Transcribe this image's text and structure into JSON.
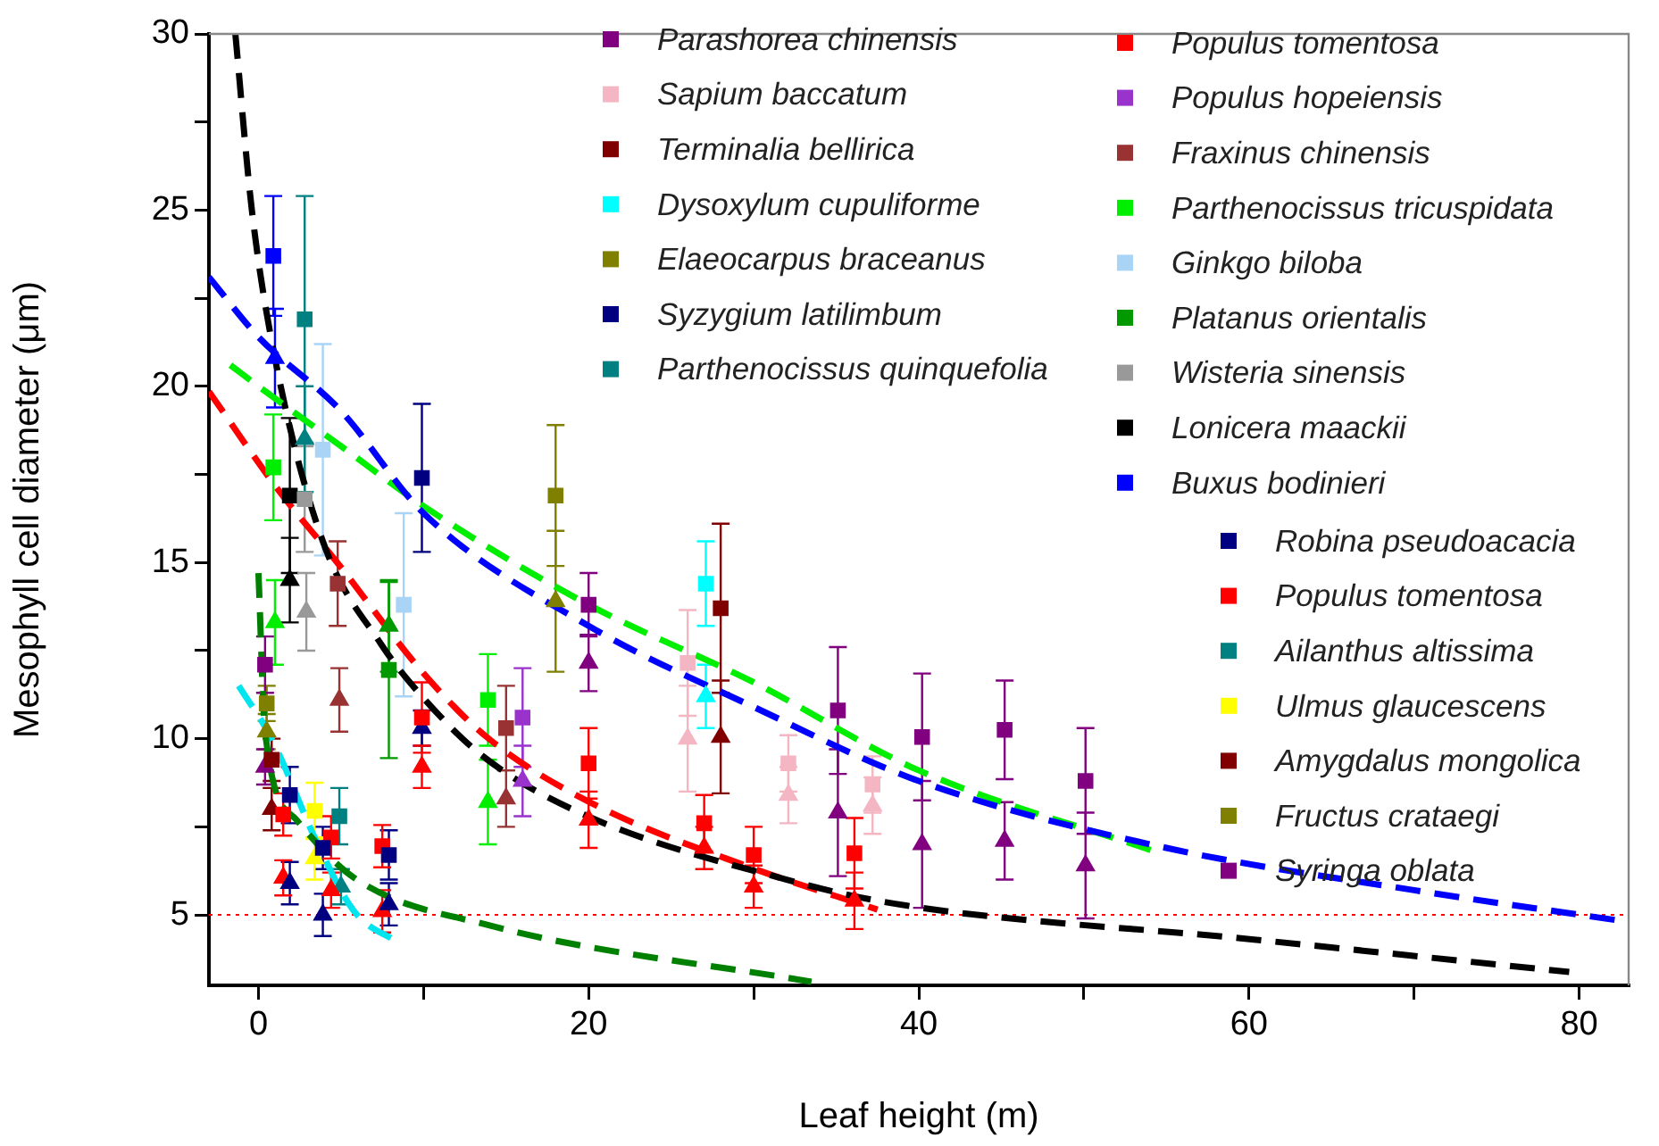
{
  "chart_data": {
    "type": "scatter",
    "xlabel": "Leaf height (m)",
    "ylabel": "Mesophyll cell diameter (μm)",
    "xlim": [
      -3,
      83
    ],
    "ylim": [
      3,
      30
    ],
    "xticks": [
      0,
      {
        "value": 10,
        "label": null
      },
      20,
      {
        "value": 30,
        "label": null
      },
      40,
      {
        "value": 50,
        "label": null
      },
      60,
      {
        "value": 70,
        "label": null
      },
      80
    ],
    "yticks": [
      5,
      {
        "value": 7.5,
        "label": null
      },
      10,
      {
        "value": 12.5,
        "label": null
      },
      15,
      {
        "value": 17.5,
        "label": null
      },
      20,
      {
        "value": 22.5,
        "label": null
      },
      25,
      {
        "value": 27.5,
        "label": null
      },
      30
    ],
    "legend": "top right",
    "marker": "square",
    "ref_lines": [
      {
        "axis": "y",
        "value": 5,
        "color": "#ff0000",
        "line_style": "dotted"
      }
    ],
    "series": [
      {
        "name": "Parashorea chinensis",
        "color": "#800080",
        "x": [
          20,
          35.1,
          40.2,
          45.2,
          50.1
        ],
        "values": [
          13.8,
          10.8,
          10.05,
          10.25,
          8.8
        ],
        "errors": [
          0.9,
          1.8,
          1.8,
          1.4,
          1.5
        ]
      },
      {
        "name": "Sapium baccatum",
        "color": "#f4b6c2",
        "x": [
          26,
          32.1,
          37.2
        ],
        "values": [
          12.15,
          9.3,
          8.7
        ],
        "errors": [
          1.5,
          0.8,
          0.8
        ]
      },
      {
        "name": "Terminalia bellirica",
        "color": "#800000",
        "x": [
          28
        ],
        "values": [
          13.7
        ],
        "errors": [
          2.4
        ]
      },
      {
        "name": "Dysoxylum cupuliforme",
        "color": "#00ffff",
        "x": [
          27.1
        ],
        "values": [
          14.4
        ],
        "errors": [
          1.2
        ]
      },
      {
        "name": "Elaeocarpus braceanus",
        "color": "#808000",
        "x": [
          18
        ],
        "values": [
          16.9
        ],
        "errors": [
          2
        ]
      },
      {
        "name": "Syzygium latilimbum",
        "color": "#000080",
        "x": [
          9.9
        ],
        "values": [
          17.4
        ],
        "errors": [
          2.1
        ]
      },
      {
        "name": "Parthenocissus quinquefolia",
        "color": "#008080",
        "x": [
          2.8
        ],
        "values": [
          21.9
        ],
        "errors": [
          3.5
        ]
      },
      {
        "name": "Populus tomentosa",
        "color": "#ff0000",
        "x": [
          9.9,
          20,
          27,
          30,
          36.1
        ],
        "values": [
          10.6,
          9.3,
          7.6,
          6.7,
          6.75
        ],
        "errors": [
          1,
          1,
          0.8,
          0.8,
          1
        ]
      },
      {
        "name": "Populus hopeiensis",
        "color": "#9933cc",
        "x": [
          16
        ],
        "values": [
          10.6
        ],
        "errors": [
          1.4
        ]
      },
      {
        "name": "Fraxinus chinensis",
        "color": "#993333",
        "x": [
          4.8,
          15
        ],
        "values": [
          14.4,
          10.3
        ],
        "errors": [
          1.2,
          1.2
        ]
      },
      {
        "name": "Parthenocissus tricuspidata",
        "color": "#00ee00",
        "x": [
          0.9,
          13.9
        ],
        "values": [
          17.7,
          11.1
        ],
        "errors": [
          1.5,
          1.3
        ]
      },
      {
        "name": "Ginkgo biloba",
        "color": "#aad4f5",
        "x": [
          3.9,
          8.8
        ],
        "values": [
          18.2,
          13.8
        ],
        "errors": [
          3,
          2.6
        ]
      },
      {
        "name": "Platanus orientalis",
        "color": "#009900",
        "x": [
          7.9
        ],
        "values": [
          11.95
        ],
        "errors": [
          2.5
        ]
      },
      {
        "name": "Wisteria sinensis",
        "color": "#999999",
        "x": [
          2.8
        ],
        "values": [
          16.8
        ],
        "errors": [
          1.5
        ]
      },
      {
        "name": "Lonicera maackii",
        "color": "#000000",
        "x": [
          1.9
        ],
        "values": [
          16.9
        ],
        "errors": [
          2.2
        ]
      },
      {
        "name": "Buxus bodinieri",
        "color": "#0000ff",
        "x": [
          0.9
        ],
        "values": [
          23.7
        ],
        "errors": [
          1.7
        ]
      },
      {
        "name": "Robina pseudoacacia",
        "color": "#000080",
        "x": [
          1.9,
          3.9,
          7.9
        ],
        "values": [
          8.4,
          6.9,
          6.7
        ],
        "errors": [
          0.8,
          0.6,
          0.7
        ]
      },
      {
        "name": "Populus tomentosa",
        "color": "#ff0000",
        "x": [
          1.5,
          4.4,
          7.5
        ],
        "values": [
          7.85,
          7.2,
          6.95
        ],
        "errors": [
          0.6,
          0.6,
          0.6
        ]
      },
      {
        "name": "Ailanthus altissima",
        "color": "#008080",
        "x": [
          4.9
        ],
        "values": [
          7.8
        ],
        "errors": [
          0.8
        ]
      },
      {
        "name": "Ulmus glaucescens",
        "color": "#ffff00",
        "x": [
          3.4
        ],
        "values": [
          7.95
        ],
        "errors": [
          0.8
        ]
      },
      {
        "name": "Amygdalus mongolica",
        "color": "#800000",
        "x": [
          0.8
        ],
        "values": [
          9.4
        ],
        "errors": [
          0.6
        ]
      },
      {
        "name": "Fructus crataegi",
        "color": "#808000",
        "x": [
          0.5
        ],
        "values": [
          11
        ],
        "errors": [
          0.5
        ]
      },
      {
        "name": "Syringa oblata",
        "color": "#800080",
        "x": [
          0.4
        ],
        "values": [
          12.1
        ],
        "errors": [
          0.8
        ]
      },
      {
        "color": "#800080",
        "marker": "triangle",
        "x": [
          20,
          35.1,
          40.2,
          45.2,
          50.1
        ],
        "values": [
          12.15,
          7.9,
          7.0,
          7.1,
          6.4
        ],
        "errors": [
          0.8,
          1.8,
          1.8,
          1.1,
          1.5
        ]
      },
      {
        "color": "#f4b6c2",
        "marker": "triangle",
        "x": [
          26,
          32.1,
          37.2
        ],
        "values": [
          10,
          8.4,
          8.1
        ],
        "errors": [
          1.5,
          0.8,
          0.8
        ]
      },
      {
        "color": "#800000",
        "marker": "triangle",
        "x": [
          28
        ],
        "values": [
          10.05
        ],
        "errors": [
          1.6
        ]
      },
      {
        "color": "#00ffff",
        "marker": "triangle",
        "x": [
          27.1
        ],
        "values": [
          11.2
        ],
        "errors": [
          0.9
        ]
      },
      {
        "color": "#808000",
        "marker": "triangle",
        "x": [
          18
        ],
        "values": [
          13.9
        ],
        "errors": [
          2
        ]
      },
      {
        "color": "#000080",
        "marker": "triangle",
        "x": [
          9.9
        ],
        "values": [
          10.3
        ],
        "errors": [
          0.5
        ]
      },
      {
        "color": "#008080",
        "marker": "triangle",
        "x": [
          2.8
        ],
        "values": [
          18.5
        ],
        "errors": [
          1.5
        ]
      },
      {
        "color": "#ff0000",
        "marker": "triangle",
        "x": [
          9.9,
          20,
          27,
          30,
          36.1
        ],
        "values": [
          9.2,
          7.7,
          6.9,
          5.8,
          5.4
        ],
        "errors": [
          0.6,
          0.8,
          0.6,
          0.6,
          0.8
        ]
      },
      {
        "color": "#9933cc",
        "marker": "triangle",
        "x": [
          16
        ],
        "values": [
          8.8
        ],
        "errors": [
          1
        ]
      },
      {
        "color": "#993333",
        "marker": "triangle",
        "x": [
          4.9,
          15
        ],
        "values": [
          11.1,
          8.3
        ],
        "errors": [
          0.9,
          0.8
        ]
      },
      {
        "color": "#00ee00",
        "marker": "triangle",
        "x": [
          1,
          13.9
        ],
        "values": [
          13.3,
          8.2
        ],
        "errors": [
          1.2,
          1.2
        ]
      },
      {
        "color": "#009900",
        "marker": "triangle",
        "x": [
          7.9
        ],
        "values": [
          13.2
        ],
        "errors": [
          1.3
        ]
      },
      {
        "color": "#999999",
        "marker": "triangle",
        "x": [
          2.9
        ],
        "values": [
          13.6
        ],
        "errors": [
          1.1
        ]
      },
      {
        "color": "#000000",
        "marker": "triangle",
        "x": [
          1.9
        ],
        "values": [
          14.5
        ],
        "errors": [
          1.2
        ]
      },
      {
        "color": "#0000ff",
        "marker": "triangle",
        "x": [
          1
        ],
        "values": [
          20.8
        ],
        "errors": [
          1.4
        ]
      },
      {
        "color": "#000080",
        "marker": "triangle",
        "x": [
          1.9,
          3.9,
          7.9
        ],
        "values": [
          5.9,
          5.0,
          5.3
        ],
        "errors": [
          0.6,
          0.6,
          0.6
        ]
      },
      {
        "color": "#ff0000",
        "marker": "triangle",
        "x": [
          1.5,
          4.4,
          7.5
        ],
        "values": [
          6.05,
          5.7,
          5.1
        ],
        "errors": [
          0.5,
          0.5,
          0.6
        ]
      },
      {
        "color": "#008080",
        "marker": "triangle",
        "x": [
          5
        ],
        "values": [
          5.8
        ],
        "errors": [
          0.5
        ]
      },
      {
        "color": "#ffff00",
        "marker": "triangle",
        "x": [
          3.4
        ],
        "values": [
          6.6
        ],
        "errors": [
          0.6
        ]
      },
      {
        "color": "#800000",
        "marker": "triangle",
        "x": [
          0.8
        ],
        "values": [
          8
        ],
        "errors": [
          0.6
        ]
      },
      {
        "color": "#808000",
        "marker": "triangle",
        "x": [
          0.5
        ],
        "values": [
          10.2
        ],
        "errors": [
          0.5
        ]
      },
      {
        "color": "#800080",
        "marker": "triangle",
        "x": [
          0.4
        ],
        "values": [
          9.2
        ],
        "errors": [
          0.5
        ]
      },
      {
        "type": "line",
        "color": "#0000ff",
        "marker": "none",
        "line_style": "dashed",
        "x": [
          -3,
          0,
          5,
          10,
          20,
          30,
          40,
          55,
          70,
          83
        ],
        "values": [
          23.1,
          21.4,
          19.3,
          16.4,
          13.2,
          10.9,
          8.8,
          6.9,
          5.7,
          4.8
        ]
      },
      {
        "type": "line",
        "color": "#00ee00",
        "marker": "none",
        "line_style": "dashed",
        "x": [
          -1.7,
          0,
          5,
          10,
          20,
          30,
          40,
          54.3
        ],
        "values": [
          20.6,
          20,
          18.3,
          16.6,
          13.8,
          11.6,
          9.1,
          6.8
        ]
      },
      {
        "type": "line",
        "color": "#000000",
        "marker": "none",
        "line_style": "dashed",
        "x": [
          -1.4,
          -0.4,
          1,
          3.9,
          7.4,
          10.1,
          13.6,
          19.7,
          32,
          38.5,
          60.3,
          79.4
        ],
        "values": [
          30,
          25,
          20.8,
          15.6,
          12.7,
          11.1,
          9.5,
          7.85,
          6,
          5.32,
          4.3,
          3.38
        ]
      },
      {
        "type": "line",
        "color": "#ff0000",
        "marker": "none",
        "line_style": "dashed",
        "x": [
          -3,
          1.2,
          4.65,
          10.1,
          13.95,
          20.1,
          29.9,
          37.5
        ],
        "values": [
          19.85,
          17.06,
          15.07,
          11.8,
          10,
          8.19,
          6.33,
          5.15
        ]
      },
      {
        "type": "line",
        "color": "#008000",
        "marker": "none",
        "line_style": "dashed",
        "x": [
          0,
          0.4,
          2.3,
          5.8,
          14,
          33.5
        ],
        "values": [
          14.7,
          10.2,
          7.7,
          6.05,
          4.7,
          3.1
        ]
      },
      {
        "type": "line",
        "color": "#00e5ee",
        "marker": "none",
        "line_style": "dashed",
        "x": [
          -1.2,
          0.8,
          3.5,
          5.8,
          8.5
        ],
        "values": [
          11.5,
          10,
          7.1,
          5.1,
          4.2
        ]
      }
    ]
  }
}
